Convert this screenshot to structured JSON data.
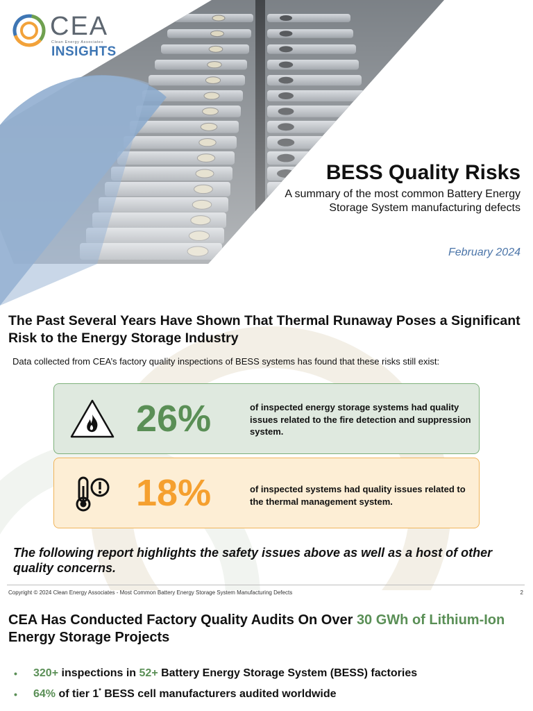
{
  "logo": {
    "name": "CEA",
    "tagline": "Clean Energy Associates",
    "product": "INSIGHTS"
  },
  "cover": {
    "title": "BESS Quality Risks",
    "subtitle": "A summary of the most common Battery Energy Storage System manufacturing defects",
    "date": "February 2024"
  },
  "section1": {
    "heading": "The Past Several Years Have Shown That Thermal Runaway Poses a Significant Risk to the Energy Storage Industry",
    "intro": "Data collected from CEA’s factory quality inspections of BESS systems has found that these risks still exist:",
    "stats": [
      {
        "value": "26%",
        "description": "of inspected energy storage systems had quality issues related to the fire detection and suppression system.",
        "icon": "fire-warning-icon"
      },
      {
        "value": "18%",
        "description": "of inspected systems had quality issues related to the thermal management system.",
        "icon": "thermometer-alert-icon"
      }
    ],
    "highlight": "The following report highlights the safety issues above as well as a host of other quality concerns."
  },
  "footer": {
    "copyright": "Copyright © 2024 Clean Energy Associates - Most Common Battery Energy Storage System Manufacturing Defects",
    "page": "2"
  },
  "section2": {
    "heading_prefix": "CEA Has Conducted Factory Quality Audits On Over ",
    "heading_highlight": "30 GWh of Lithium-Ion",
    "heading_suffix": " Energy Storage Projects",
    "bullets": [
      {
        "highlight1": "320+",
        "text1": " inspections in ",
        "highlight2": "52+",
        "text2": " Battery Energy Storage System (BESS) factories"
      },
      {
        "highlight1": "64%",
        "text1": " of tier 1",
        "sup": "*",
        "text2": " BESS cell manufacturers audited worldwide"
      }
    ]
  },
  "colors": {
    "accent_green": "#5a8f56",
    "accent_orange": "#f5a02f",
    "accent_blue": "#3e76b4",
    "date_blue": "#4a74a8"
  }
}
